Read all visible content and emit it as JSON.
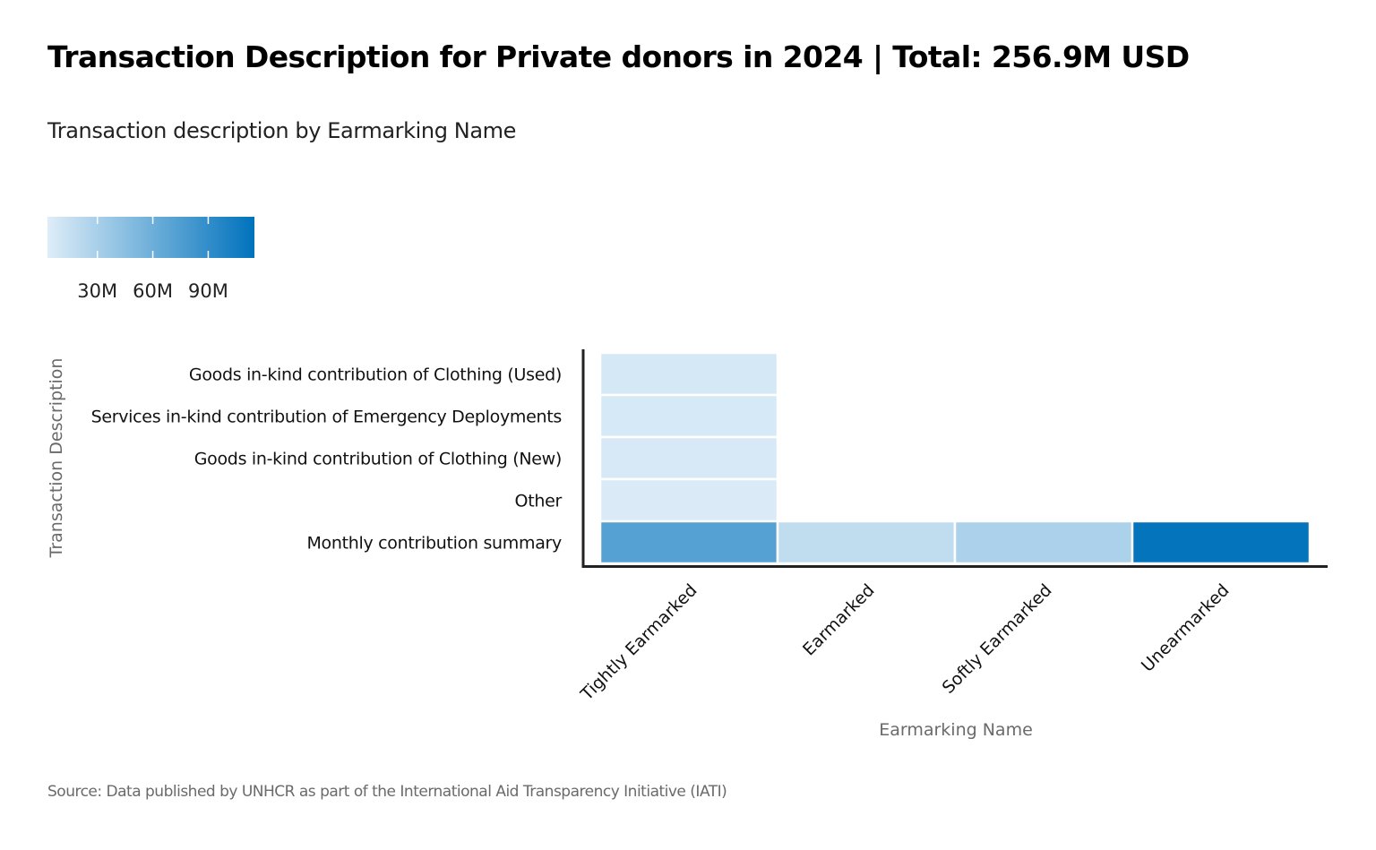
{
  "chart_data": {
    "type": "heatmap",
    "title": "Transaction Description  for Private  donors in 2024 | Total: 256.9M USD",
    "subtitle": "Transaction description by Earmarking Name",
    "xlabel": "Earmarking Name",
    "ylabel": "Transaction Description",
    "x_categories": [
      "Tightly Earmarked",
      "Earmarked",
      "Softly Earmarked",
      "Unearmarked"
    ],
    "y_categories": [
      "Goods in-kind contribution of Clothing (Used)",
      "Services in-kind contribution of Emergency Deployments",
      "Goods in-kind contribution of Clothing (New)",
      "Other",
      "Monthly contribution summary"
    ],
    "cells": [
      {
        "x": "Tightly Earmarked",
        "y": "Goods in-kind contribution of Clothing (Used)",
        "value": 7.5,
        "unit": "M USD"
      },
      {
        "x": "Tightly Earmarked",
        "y": "Services in-kind contribution of Emergency Deployments",
        "value": 7.0,
        "unit": "M USD"
      },
      {
        "x": "Tightly Earmarked",
        "y": "Goods in-kind contribution of Clothing (New)",
        "value": 6.5,
        "unit": "M USD"
      },
      {
        "x": "Tightly Earmarked",
        "y": "Other",
        "value": 4.9,
        "unit": "M USD"
      },
      {
        "x": "Tightly Earmarked",
        "y": "Monthly contribution summary",
        "value": 72,
        "unit": "M USD"
      },
      {
        "x": "Earmarked",
        "y": "Monthly contribution summary",
        "value": 18,
        "unit": "M USD"
      },
      {
        "x": "Softly Earmarked",
        "y": "Monthly contribution summary",
        "value": 28,
        "unit": "M USD"
      },
      {
        "x": "Unearmarked",
        "y": "Monthly contribution summary",
        "value": 113,
        "unit": "M USD"
      }
    ],
    "color_scale": {
      "min": 3,
      "max": 115,
      "colors": [
        "#deedf8",
        "#0072bc"
      ],
      "ticks": [
        30,
        60,
        90
      ],
      "tick_labels": [
        "30M",
        "60M",
        "90M"
      ]
    },
    "legend_position": "top-left",
    "grid": false
  },
  "source": "Source: Data published by UNHCR as part of the International Aid Transparency Initiative (IATI)"
}
